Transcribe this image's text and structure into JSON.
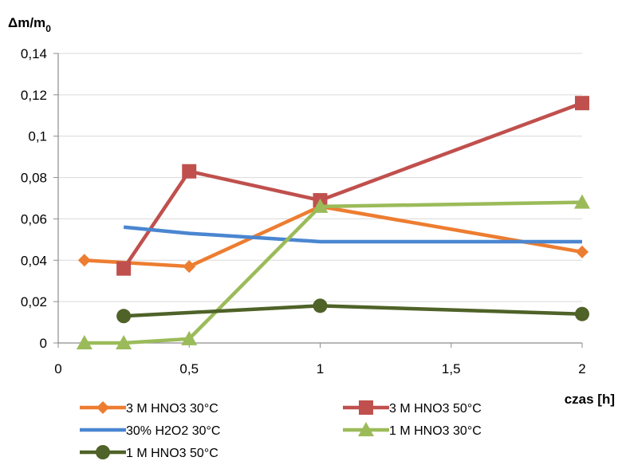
{
  "chart_data": {
    "type": "line",
    "ylabel_main": "Δm/m",
    "ylabel_sub": "0",
    "xlabel": "czas [h]",
    "x_ticks": [
      "0",
      "0,5",
      "1",
      "1,5",
      "2"
    ],
    "y_ticks": [
      "0",
      "0,02",
      "0,04",
      "0,06",
      "0,08",
      "0,1",
      "0,12",
      "0,14"
    ],
    "xlim": [
      0,
      2
    ],
    "ylim": [
      0,
      0.14
    ],
    "grid": "horizontal",
    "legend_position": "bottom",
    "series": [
      {
        "name": "3 M HNO3 30°C",
        "color": "#ED7D31",
        "marker": "diamond",
        "points": [
          [
            0.1,
            0.04
          ],
          [
            0.5,
            0.037
          ],
          [
            1,
            0.066
          ],
          [
            2,
            0.044
          ]
        ]
      },
      {
        "name": "3 M HNO3 50°C",
        "color": "#C0504D",
        "marker": "square",
        "points": [
          [
            0.25,
            0.036
          ],
          [
            0.5,
            0.083
          ],
          [
            1,
            0.069
          ],
          [
            2,
            0.116
          ]
        ]
      },
      {
        "name": "30% H2O2 30°C",
        "color": "#4A86D0",
        "marker": "none",
        "points": [
          [
            0.25,
            0.056
          ],
          [
            0.5,
            0.053
          ],
          [
            1,
            0.049
          ],
          [
            2,
            0.049
          ]
        ]
      },
      {
        "name": "1 M HNO3 30°C",
        "color": "#9BBB59",
        "marker": "triangle",
        "points": [
          [
            0.1,
            0.0
          ],
          [
            0.25,
            0.0
          ],
          [
            0.5,
            0.002
          ],
          [
            1,
            0.066
          ],
          [
            2,
            0.068
          ]
        ]
      },
      {
        "name": "1 M HNO3 50°C",
        "color": "#4F6228",
        "marker": "circle",
        "points": [
          [
            0.25,
            0.013
          ],
          [
            1,
            0.018
          ],
          [
            2,
            0.014
          ]
        ]
      }
    ]
  }
}
